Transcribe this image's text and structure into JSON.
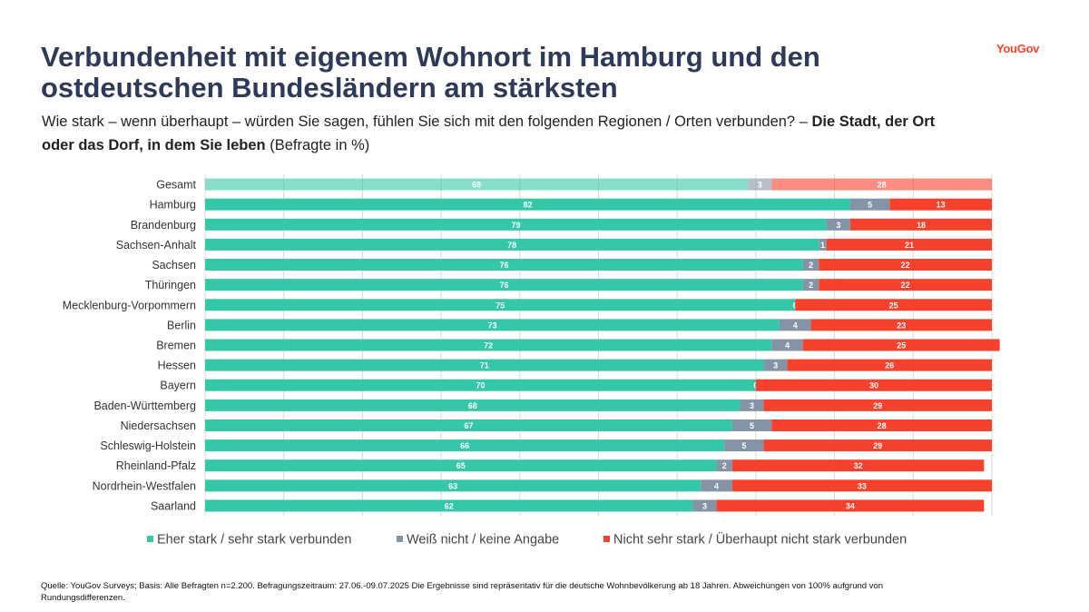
{
  "header": {
    "title": "Verbundenheit mit eigenem Wohnort im Hamburg und den ostdeutschen Bundesländern am stärksten",
    "logo": "YouGov",
    "subtitle_pre": "Wie stark – wenn überhaupt – würden Sie sagen, fühlen Sie sich mit den folgenden Regionen / Orten verbunden? – ",
    "subtitle_bold": "Die Stadt, der Ort oder das Dorf, in dem Sie leben",
    "subtitle_post": " (Befragte in %)"
  },
  "footer": {
    "source": "Quelle: YouGov Surveys; Basis: Alle Befragten n=2.200. Befragungszeitraum: 27.06.-09.07.2025 Die Ergebnisse sind repräsentativ für die deutsche Wohnbevölkerung ab 18 Jahren. Abweichungen von 100% aufgrund von Rundungsdifferenzen."
  },
  "colors": {
    "strong": "#35c8a8",
    "unknown": "#8593a6",
    "weak": "#f6412d",
    "title": "#2e3a59",
    "logo": "#ff412c"
  },
  "chart_data": {
    "type": "bar",
    "orientation": "horizontal",
    "stacked": true,
    "xlim": [
      0,
      100
    ],
    "grid": true,
    "legend_position": "bottom",
    "categories": [
      "Gesamt",
      "Hamburg",
      "Brandenburg",
      "Sachsen-Anhalt",
      "Sachsen",
      "Thüringen",
      "Mecklenburg-Vorpommern",
      "Berlin",
      "Bremen",
      "Hessen",
      "Bayern",
      "Baden-Württemberg",
      "Niedersachsen",
      "Schleswig-Holstein",
      "Rheinland-Pfalz",
      "Nordrhein-Westfalen",
      "Saarland"
    ],
    "highlight_first_category": true,
    "series": [
      {
        "name": "Eher stark / sehr stark verbunden",
        "color": "#35c8a8",
        "values": [
          69,
          82,
          79,
          78,
          76,
          76,
          75,
          73,
          72,
          71,
          70,
          68,
          67,
          66,
          65,
          63,
          62
        ]
      },
      {
        "name": "Weiß nicht / keine Angabe",
        "color": "#8593a6",
        "values": [
          3,
          5,
          3,
          1,
          2,
          2,
          0,
          4,
          4,
          3,
          0,
          3,
          5,
          5,
          2,
          4,
          3
        ]
      },
      {
        "name": "Nicht sehr stark / Überhaupt nicht stark verbunden",
        "color": "#f6412d",
        "values": [
          28,
          13,
          18,
          21,
          22,
          22,
          25,
          23,
          25,
          26,
          30,
          29,
          28,
          29,
          32,
          33,
          34
        ]
      }
    ]
  }
}
